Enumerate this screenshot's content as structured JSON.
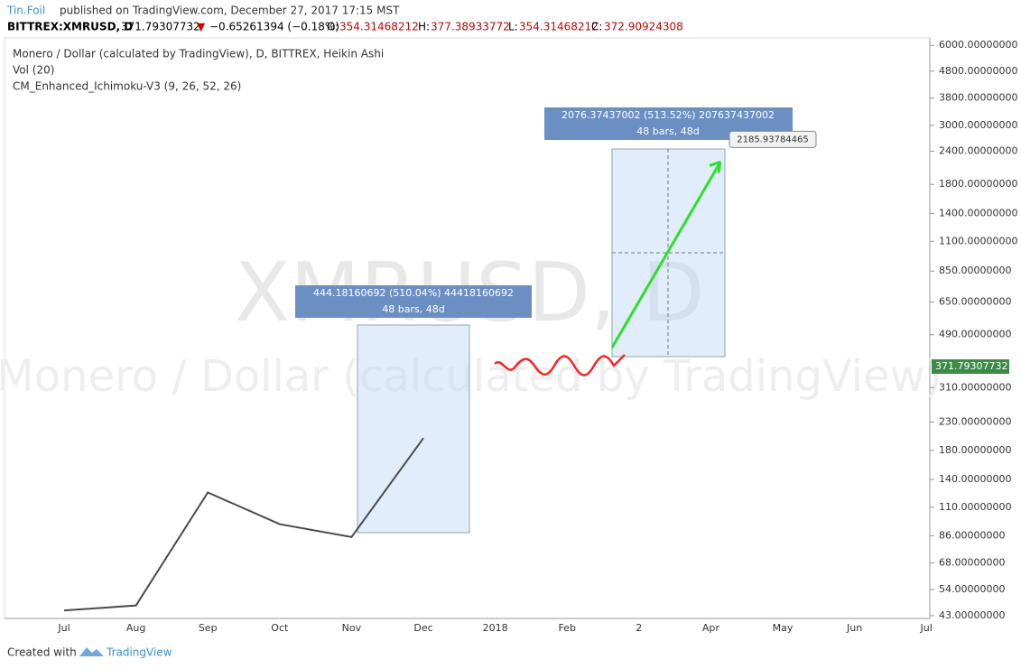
{
  "header": {
    "author": "Tin.Foil",
    "published": "published on TradingView.com, December 27, 2017 17:15 MST"
  },
  "quote": {
    "symbol": "BITTREX:XMRUSD, D",
    "last": "371.79307732",
    "change": "−0.65261394 (−0.18%)",
    "o_label": "O:",
    "o": "354.31468212",
    "h_label": "H:",
    "h": "377.38933772",
    "l_label": "L:",
    "l": "354.31468212",
    "c_label": "C:",
    "c": "372.90924308"
  },
  "chart_data": {
    "type": "line",
    "title": "Monero / Dollar (calculated by TradingView), D, BITTREX, Heikin Ashi",
    "indicators": [
      "Vol (20)",
      "CM_Enhanced_Ichimoku-V3 (9, 26, 52, 26)"
    ],
    "watermark": "XMRUSD, D",
    "watermark_sub": "Monero / Dollar (calculated by TradingView)",
    "categories": [
      "Jul",
      "Aug",
      "Sep",
      "Oct",
      "Nov",
      "Dec",
      "2018",
      "Feb",
      "2",
      "Apr",
      "May",
      "Jun",
      "Jul"
    ],
    "series": [
      {
        "name": "Price",
        "color": "#4a4a4a",
        "values": [
          45,
          47,
          125,
          95,
          85,
          200,
          null,
          null,
          null,
          null,
          null,
          null,
          null
        ]
      }
    ],
    "log_scale": true,
    "ylim": [
      42,
      6250
    ],
    "yticks": [
      {
        "value": 6000,
        "label": "6000.00000000"
      },
      {
        "value": 4800,
        "label": "4800.00000000"
      },
      {
        "value": 3800,
        "label": "3800.00000000"
      },
      {
        "value": 3000,
        "label": "3000.00000000"
      },
      {
        "value": 2400,
        "label": "2400.00000000"
      },
      {
        "value": 1800,
        "label": "1800.00000000"
      },
      {
        "value": 1400,
        "label": "1400.00000000"
      },
      {
        "value": 1100,
        "label": "1100.00000000"
      },
      {
        "value": 850,
        "label": "850.00000000"
      },
      {
        "value": 650,
        "label": "650.00000000"
      },
      {
        "value": 490,
        "label": "490.00000000"
      },
      {
        "value": 310,
        "label": "310.00000000"
      },
      {
        "value": 230,
        "label": "230.00000000"
      },
      {
        "value": 180,
        "label": "180.00000000"
      },
      {
        "value": 140,
        "label": "140.00000000"
      },
      {
        "value": 110,
        "label": "110.00000000"
      },
      {
        "value": 86,
        "label": "86.00000000"
      },
      {
        "value": 68,
        "label": "68.00000000"
      },
      {
        "value": 54,
        "label": "54.00000000"
      },
      {
        "value": 43,
        "label": "43.00000000"
      }
    ],
    "last_price": 371.79307732,
    "target": 2185.93784465,
    "measures": [
      {
        "text": "444.18160692 (510.04%) 44418160692",
        "bars": "48 bars, 48d"
      },
      {
        "text": "2076.37437002 (513.52%) 207637437002",
        "bars": "48 bars, 48d"
      }
    ]
  },
  "footer": {
    "created": "Created with",
    "brand": "TradingView"
  }
}
